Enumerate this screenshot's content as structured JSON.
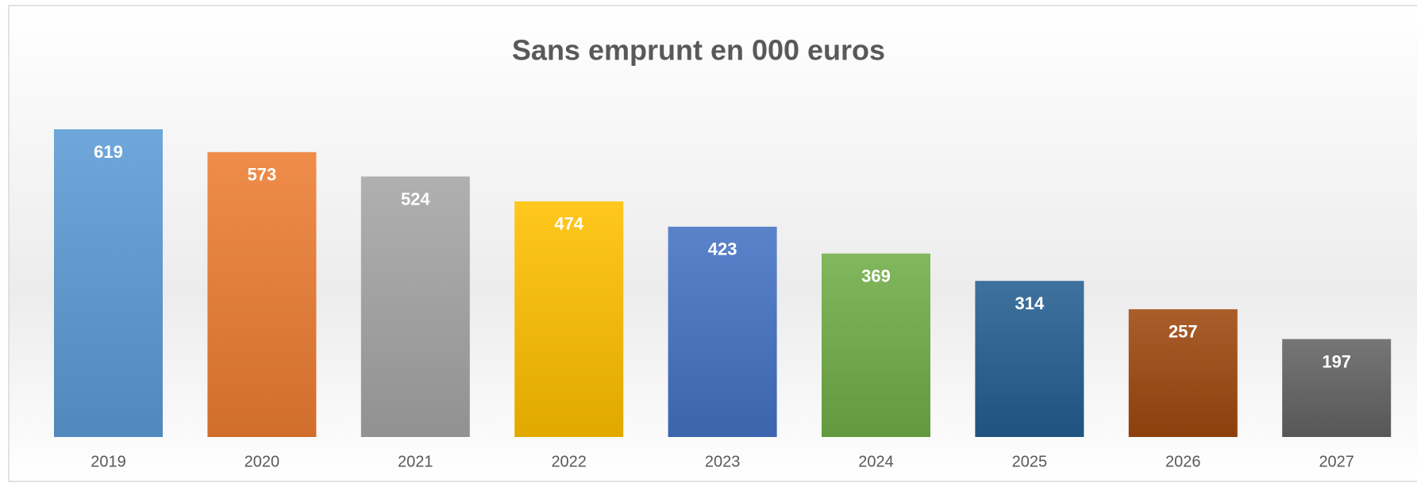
{
  "chart_data": {
    "type": "bar",
    "title": "Sans emprunt en 000 euros",
    "categories": [
      "2019",
      "2020",
      "2021",
      "2022",
      "2023",
      "2024",
      "2025",
      "2026",
      "2027"
    ],
    "values": [
      619,
      573,
      524,
      474,
      423,
      369,
      314,
      257,
      197
    ],
    "colors": [
      "#5b9bd5",
      "#ed7d31",
      "#a5a5a5",
      "#ffc000",
      "#4472c4",
      "#70ad47",
      "#255e91",
      "#9e480e",
      "#636363"
    ]
  }
}
